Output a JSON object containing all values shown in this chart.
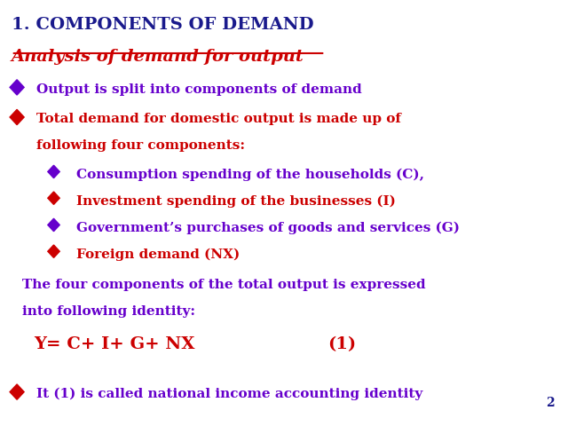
{
  "bg_color": "#ffffff",
  "title": "1. COMPONENTS OF DEMAND",
  "title_color": "#1a1a8c",
  "title_fontsize": 14,
  "subtitle": "Analysis of demand for output",
  "subtitle_color": "#cc0000",
  "subtitle_fontsize": 14,
  "bullet1_text": "Output is split into components of demand",
  "bullet1_color": "#6600cc",
  "bullet1_marker_color": "#6600cc",
  "bullet2_line1": "Total demand for domestic output is made up of",
  "bullet2_line2": "following four components:",
  "bullet2_color": "#cc0000",
  "bullet2_marker_color": "#cc0000",
  "sub_bullets": [
    {
      "text": "Consumption spending of the households (C),",
      "color": "#6600cc",
      "marker_color": "#6600cc"
    },
    {
      "text": "Investment spending of the businesses (I)",
      "color": "#cc0000",
      "marker_color": "#cc0000"
    },
    {
      "text": "Government’s purchases of goods and services (G)",
      "color": "#6600cc",
      "marker_color": "#6600cc"
    },
    {
      "text": "Foreign demand (NX)",
      "color": "#cc0000",
      "marker_color": "#cc0000"
    }
  ],
  "para_line1": "The four components of the total output is expressed",
  "para_line2": "into following identity:",
  "para_color": "#6600cc",
  "identity_text": "Y= C+ I+ G+ NX",
  "identity_num": "(1)",
  "identity_color": "#cc0000",
  "identity_fontsize": 14,
  "last_bullet_text": "It (1) is called national income accounting identity",
  "last_bullet_color": "#6600cc",
  "last_bullet_marker_color": "#cc0000",
  "page_num": "2",
  "page_num_color": "#1a1a8c"
}
